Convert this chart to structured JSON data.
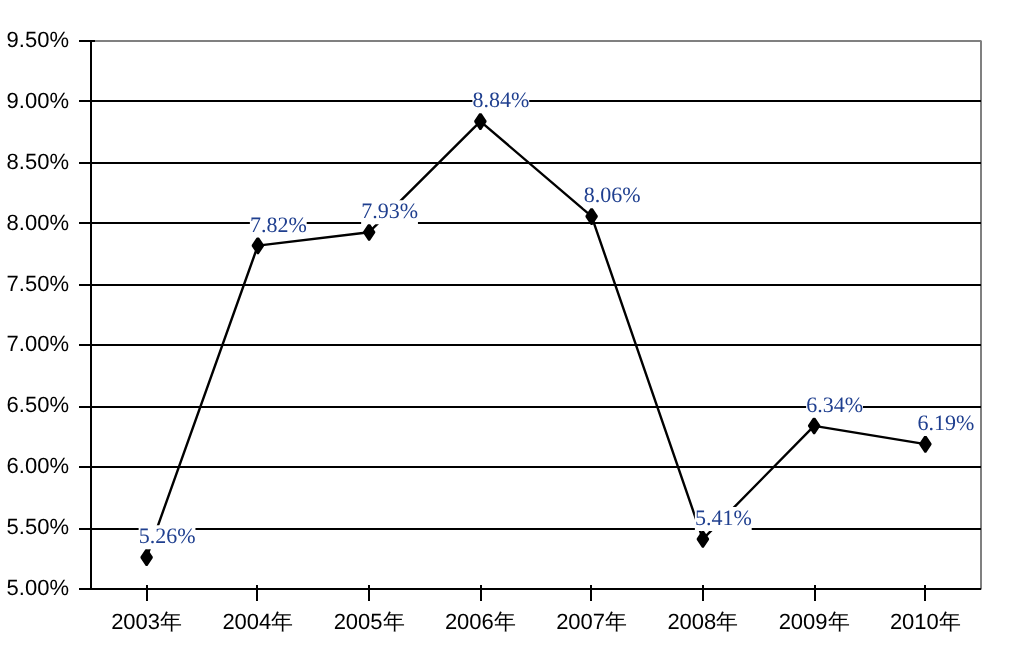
{
  "chart_data": {
    "type": "line",
    "categories": [
      "2003年",
      "2004年",
      "2005年",
      "2006年",
      "2007年",
      "2008年",
      "2009年",
      "2010年"
    ],
    "series": [
      {
        "color": "#000000",
        "values": [
          5.26,
          7.82,
          7.93,
          8.84,
          8.06,
          5.41,
          6.34,
          6.19
        ]
      }
    ],
    "value_labels": [
      "5.26%",
      "7.82%",
      "7.93%",
      "8.84%",
      "8.06%",
      "5.41%",
      "6.34%",
      "6.19%"
    ],
    "ylim": [
      5.0,
      9.5
    ],
    "yticks": [
      {
        "value": 5.0,
        "label": "5.00%"
      },
      {
        "value": 5.5,
        "label": "5.50%"
      },
      {
        "value": 6.0,
        "label": "6.00%"
      },
      {
        "value": 6.5,
        "label": "6.50%"
      },
      {
        "value": 7.0,
        "label": "7.00%"
      },
      {
        "value": 7.5,
        "label": "7.50%"
      },
      {
        "value": 8.0,
        "label": "8.00%"
      },
      {
        "value": 8.5,
        "label": "8.50%"
      },
      {
        "value": 9.0,
        "label": "9.00%"
      },
      {
        "value": 9.5,
        "label": "9.50%"
      }
    ],
    "grid": "y",
    "marker": "diamond",
    "line_style": "solid"
  }
}
